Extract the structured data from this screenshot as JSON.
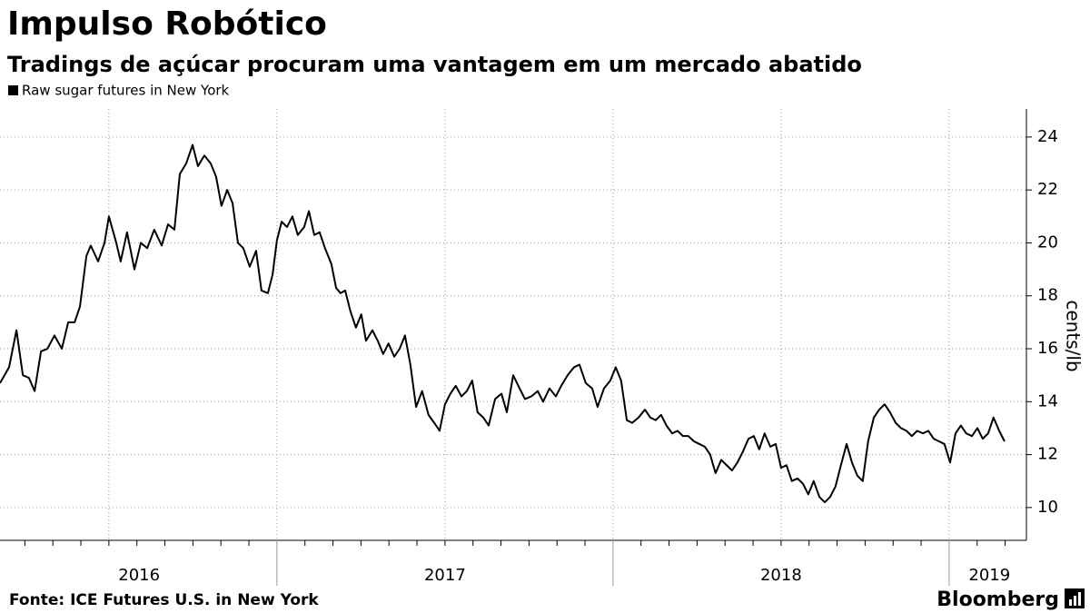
{
  "chart_data": {
    "type": "line",
    "title": "Impulso Robótico",
    "subtitle": "Tradings de açúcar procuram uma vantagem em um mercado abatido",
    "y_label": "cents/lb",
    "source": "Fonte: ICE Futures U.S. in New York",
    "brand": "Bloomberg",
    "x": [
      2016.176,
      2016.203,
      2016.225,
      2016.244,
      2016.262,
      2016.279,
      2016.298,
      2016.317,
      2016.338,
      2016.36,
      2016.379,
      2016.398,
      2016.414,
      2016.433,
      2016.446,
      2016.468,
      2016.487,
      2016.5,
      2016.522,
      2016.535,
      2016.554,
      2016.576,
      2016.595,
      2016.614,
      2016.635,
      2016.657,
      2016.676,
      2016.695,
      2016.711,
      2016.73,
      2016.749,
      2016.765,
      2016.784,
      2016.803,
      2016.819,
      2016.835,
      2016.852,
      2016.868,
      2016.884,
      2016.9,
      2016.919,
      2016.938,
      2016.954,
      2016.973,
      2016.987,
      2017.0,
      2017.014,
      2017.03,
      2017.046,
      2017.062,
      2017.081,
      2017.095,
      2017.111,
      2017.127,
      2017.143,
      2017.162,
      2017.176,
      2017.189,
      2017.203,
      2017.219,
      2017.235,
      2017.251,
      2017.265,
      2017.284,
      2017.3,
      2017.316,
      2017.332,
      2017.349,
      2017.365,
      2017.381,
      2017.397,
      2017.414,
      2017.432,
      2017.451,
      2017.468,
      2017.484,
      2017.5,
      2017.516,
      2017.532,
      2017.549,
      2017.565,
      2017.581,
      2017.597,
      2017.614,
      2017.63,
      2017.649,
      2017.668,
      2017.684,
      2017.703,
      2017.722,
      2017.738,
      2017.757,
      2017.776,
      2017.792,
      2017.811,
      2017.83,
      2017.846,
      2017.865,
      2017.884,
      2017.9,
      2017.919,
      2017.938,
      2017.954,
      2017.973,
      2017.992,
      2018.008,
      2018.024,
      2018.041,
      2018.057,
      2018.076,
      2018.095,
      2018.111,
      2018.127,
      2018.143,
      2018.159,
      2018.176,
      2018.192,
      2018.208,
      2018.224,
      2018.241,
      2018.257,
      2018.273,
      2018.289,
      2018.305,
      2018.322,
      2018.338,
      2018.354,
      2018.37,
      2018.386,
      2018.403,
      2018.419,
      2018.435,
      2018.451,
      2018.468,
      2018.484,
      2018.5,
      2018.516,
      2018.532,
      2018.549,
      2018.565,
      2018.581,
      2018.597,
      2018.614,
      2018.63,
      2018.646,
      2018.662,
      2018.678,
      2018.695,
      2018.711,
      2018.727,
      2018.743,
      2018.759,
      2018.776,
      2018.792,
      2018.808,
      2018.824,
      2018.841,
      2018.857,
      2018.873,
      2018.889,
      2018.905,
      2018.922,
      2018.938,
      2018.954,
      2018.97,
      2018.986,
      2019.003,
      2019.019,
      2019.035,
      2019.051,
      2019.068,
      2019.084,
      2019.1,
      2019.116,
      2019.132,
      2019.149,
      2019.165
    ],
    "series": [
      {
        "name": "Raw sugar futures in New York",
        "color": "#000000",
        "values": [
          14.7,
          15.3,
          16.7,
          15.0,
          14.9,
          14.4,
          15.9,
          16.0,
          16.5,
          16.0,
          17.0,
          17.0,
          17.6,
          19.5,
          19.9,
          19.3,
          20.0,
          21.0,
          20.0,
          19.3,
          20.4,
          19.0,
          20.0,
          19.8,
          20.5,
          19.9,
          20.7,
          20.5,
          22.6,
          23.0,
          23.7,
          22.9,
          23.3,
          23.0,
          22.5,
          21.4,
          22.0,
          21.5,
          20.0,
          19.8,
          19.1,
          19.7,
          18.2,
          18.1,
          18.8,
          20.1,
          20.8,
          20.6,
          21.0,
          20.3,
          20.6,
          21.2,
          20.3,
          20.4,
          19.8,
          19.2,
          18.3,
          18.1,
          18.2,
          17.4,
          16.8,
          17.3,
          16.3,
          16.7,
          16.3,
          15.8,
          16.2,
          15.7,
          16.0,
          16.5,
          15.4,
          13.8,
          14.4,
          13.5,
          13.2,
          12.9,
          13.9,
          14.3,
          14.6,
          14.2,
          14.4,
          14.8,
          13.6,
          13.4,
          13.1,
          14.1,
          14.3,
          13.6,
          15.0,
          14.5,
          14.1,
          14.2,
          14.4,
          14.0,
          14.5,
          14.2,
          14.6,
          15.0,
          15.3,
          15.4,
          14.7,
          14.5,
          13.8,
          14.5,
          14.8,
          15.3,
          14.8,
          13.3,
          13.2,
          13.4,
          13.7,
          13.4,
          13.3,
          13.5,
          13.1,
          12.8,
          12.9,
          12.7,
          12.7,
          12.5,
          12.4,
          12.3,
          12.0,
          11.3,
          11.8,
          11.6,
          11.4,
          11.7,
          12.1,
          12.6,
          12.7,
          12.2,
          12.8,
          12.3,
          12.4,
          11.5,
          11.6,
          11.0,
          11.1,
          10.9,
          10.5,
          11.0,
          10.4,
          10.2,
          10.4,
          10.8,
          11.6,
          12.4,
          11.7,
          11.2,
          11.0,
          12.5,
          13.4,
          13.7,
          13.9,
          13.6,
          13.2,
          13.0,
          12.9,
          12.7,
          12.9,
          12.8,
          12.9,
          12.6,
          12.5,
          12.4,
          11.7,
          12.8,
          13.1,
          12.8,
          12.7,
          13.0,
          12.6,
          12.8,
          13.4,
          12.9,
          12.5
        ]
      }
    ],
    "xlim": [
      2016.176,
      2019.23
    ],
    "xticks": [
      2016.5,
      2017,
      2017.5,
      2018,
      2018.5,
      2019
    ],
    "xlabels": [
      {
        "value": 2016.59,
        "label": "2016"
      },
      {
        "value": 2017.5,
        "label": "2017"
      },
      {
        "value": 2018.5,
        "label": "2018"
      },
      {
        "value": 2019.12,
        "label": "2019"
      }
    ],
    "ylim": [
      8.76,
      25.06
    ],
    "yticks": [
      10,
      12,
      14,
      16,
      18,
      20,
      22,
      24
    ],
    "grid": true
  }
}
